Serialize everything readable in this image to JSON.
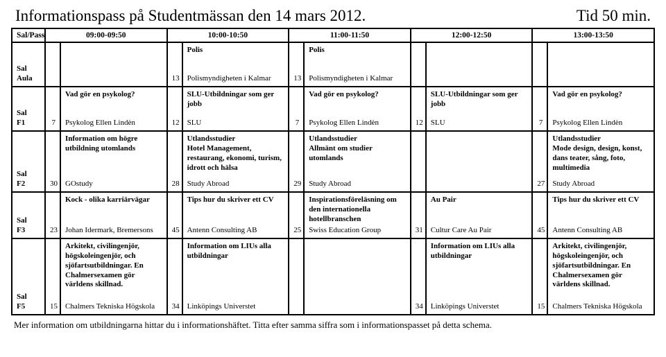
{
  "header": {
    "title_left": "Informationspass på Studentmässan den 14 mars 2012.",
    "title_right": "Tid 50 min."
  },
  "columns": {
    "room_label": "Sal/Pass",
    "times": [
      "09:00-09:50",
      "10:00-10:50",
      "11:00-11:50",
      "12:00-12:50",
      "13:00-13:50"
    ]
  },
  "rows": [
    {
      "room_label": "Sal",
      "room_name": "Aula",
      "cells": [
        {
          "num": "",
          "topic": "",
          "org": ""
        },
        {
          "num": "13",
          "topic": "Polis",
          "org": "Polismyndigheten i Kalmar"
        },
        {
          "num": "13",
          "topic": "Polis",
          "org": "Polismyndigheten i Kalmar"
        },
        {
          "num": "",
          "topic": "",
          "org": ""
        },
        {
          "num": "",
          "topic": "",
          "org": ""
        }
      ]
    },
    {
      "room_label": "Sal",
      "room_name": "F1",
      "cells": [
        {
          "num": "7",
          "topic": "Vad gör en psykolog?",
          "org": "Psykolog Ellen Lindèn"
        },
        {
          "num": "12",
          "topic": "SLU-Utbildningar som ger jobb",
          "org": "SLU"
        },
        {
          "num": "7",
          "topic": "Vad gör en psykolog?",
          "org": "Psykolog Ellen Lindèn"
        },
        {
          "num": "12",
          "topic": "SLU-Utbildningar som ger jobb",
          "org": "SLU"
        },
        {
          "num": "7",
          "topic": "Vad gör en psykolog?",
          "org": "Psykolog Ellen Lindèn"
        }
      ]
    },
    {
      "room_label": "Sal",
      "room_name": "F2",
      "cells": [
        {
          "num": "30",
          "topic": "Information om högre utbildning utomlands",
          "org": "GOstudy"
        },
        {
          "num": "28",
          "topic": "Utlandsstudier\nHotel Management, restaurang, ekonomi, turism, idrott och hälsa",
          "org": "Study Abroad"
        },
        {
          "num": "29",
          "topic": "Utlandsstudier\nAllmänt om studier utomlands",
          "org": "Study Abroad"
        },
        {
          "num": "",
          "topic": "",
          "org": ""
        },
        {
          "num": "27",
          "topic": "Utlandsstudier\nMode design, design, konst, dans teater, sång, foto, multimedia",
          "org": "Study Abroad"
        }
      ]
    },
    {
      "room_label": "Sal",
      "room_name": "F3",
      "cells": [
        {
          "num": "23",
          "topic": "Kock - olika karriärvägar",
          "org": "Johan Idermark, Bremersons"
        },
        {
          "num": "45",
          "topic": "Tips hur du skriver ett CV",
          "org": "Antenn Consulting AB"
        },
        {
          "num": "25",
          "topic": "Inspirationsföreläsning om den internationella hotellbranschen",
          "org": "Swiss Education Group"
        },
        {
          "num": "31",
          "topic": "Au Pair",
          "org": "Cultur Care Au Pair"
        },
        {
          "num": "45",
          "topic": "Tips hur du skriver ett CV",
          "org": "Antenn Consulting AB"
        }
      ]
    },
    {
      "room_label": "Sal",
      "room_name": "F5",
      "cells": [
        {
          "num": "15",
          "topic": "Arkitekt, civilingenjör, högskoleingenjör, och sjöfartsutbildningar. En Chalmersexamen gör världens skillnad.",
          "org": "Chalmers Tekniska Högskola"
        },
        {
          "num": "34",
          "topic": "Information om LIUs alla utbildningar",
          "org": "Linköpings Universtet"
        },
        {
          "num": "",
          "topic": "",
          "org": ""
        },
        {
          "num": "34",
          "topic": "Information om LIUs alla utbildningar",
          "org": "Linköpings Universtet"
        },
        {
          "num": "15",
          "topic": "Arkitekt, civilingenjör, högskoleingenjör, och sjöfartsutbildningar. En Chalmersexamen gör världens skillnad.",
          "org": "Chalmers Tekniska Högskola"
        }
      ]
    }
  ],
  "footer": "Mer information om utbildningarna hittar du i informationshäftet. Titta efter samma siffra som i informationspasset på detta schema."
}
